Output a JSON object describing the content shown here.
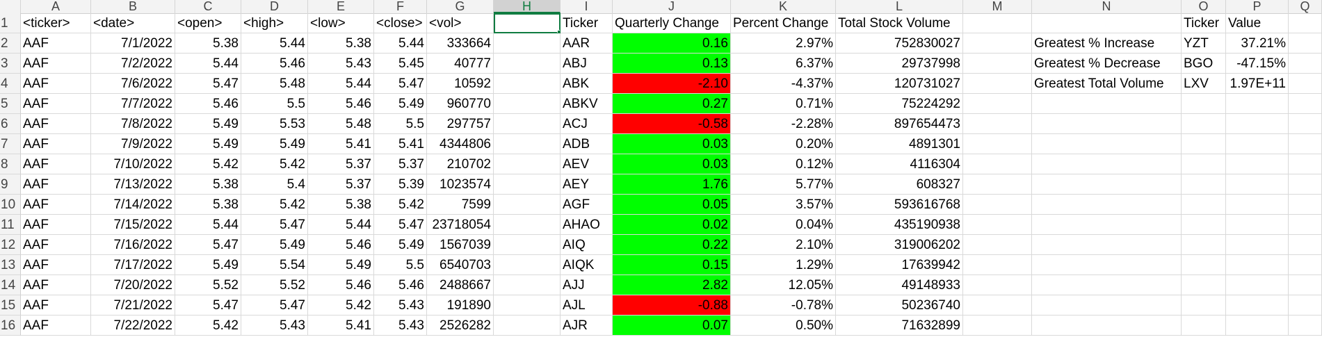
{
  "columns": [
    "A",
    "B",
    "C",
    "D",
    "E",
    "F",
    "G",
    "H",
    "I",
    "J",
    "K",
    "L",
    "M",
    "N",
    "O",
    "P",
    "Q"
  ],
  "active_column": "H",
  "headers": {
    "A": "<ticker>",
    "B": "<date>",
    "C": "<open>",
    "D": "<high>",
    "E": "<low>",
    "F": "<close>",
    "G": "<vol>",
    "I": "Ticker",
    "J": "Quarterly Change",
    "K": "Percent Change",
    "L": "Total Stock Volume",
    "O": "Ticker",
    "P": "Value"
  },
  "rows": [
    {
      "n": "2",
      "ticker": "AAF",
      "date": "7/1/2022",
      "open": "5.38",
      "high": "5.44",
      "low": "5.38",
      "close": "5.44",
      "vol": "333664",
      "t": "AAR",
      "qc": "0.16",
      "qc_color": "green",
      "pc": "2.97%",
      "tv": "752830027"
    },
    {
      "n": "3",
      "ticker": "AAF",
      "date": "7/2/2022",
      "open": "5.44",
      "high": "5.46",
      "low": "5.43",
      "close": "5.45",
      "vol": "40777",
      "t": "ABJ",
      "qc": "0.13",
      "qc_color": "green",
      "pc": "6.37%",
      "tv": "29737998"
    },
    {
      "n": "4",
      "ticker": "AAF",
      "date": "7/6/2022",
      "open": "5.47",
      "high": "5.48",
      "low": "5.44",
      "close": "5.47",
      "vol": "10592",
      "t": "ABK",
      "qc": "-2.10",
      "qc_color": "red",
      "pc": "-4.37%",
      "tv": "120731027"
    },
    {
      "n": "5",
      "ticker": "AAF",
      "date": "7/7/2022",
      "open": "5.46",
      "high": "5.5",
      "low": "5.46",
      "close": "5.49",
      "vol": "960770",
      "t": "ABKV",
      "qc": "0.27",
      "qc_color": "green",
      "pc": "0.71%",
      "tv": "75224292"
    },
    {
      "n": "6",
      "ticker": "AAF",
      "date": "7/8/2022",
      "open": "5.49",
      "high": "5.53",
      "low": "5.48",
      "close": "5.5",
      "vol": "297757",
      "t": "ACJ",
      "qc": "-0.58",
      "qc_color": "red",
      "pc": "-2.28%",
      "tv": "897654473"
    },
    {
      "n": "7",
      "ticker": "AAF",
      "date": "7/9/2022",
      "open": "5.49",
      "high": "5.49",
      "low": "5.41",
      "close": "5.41",
      "vol": "4344806",
      "t": "ADB",
      "qc": "0.03",
      "qc_color": "green",
      "pc": "0.20%",
      "tv": "4891301"
    },
    {
      "n": "8",
      "ticker": "AAF",
      "date": "7/10/2022",
      "open": "5.42",
      "high": "5.42",
      "low": "5.37",
      "close": "5.37",
      "vol": "210702",
      "t": "AEV",
      "qc": "0.03",
      "qc_color": "green",
      "pc": "0.12%",
      "tv": "4116304"
    },
    {
      "n": "9",
      "ticker": "AAF",
      "date": "7/13/2022",
      "open": "5.38",
      "high": "5.4",
      "low": "5.37",
      "close": "5.39",
      "vol": "1023574",
      "t": "AEY",
      "qc": "1.76",
      "qc_color": "green",
      "pc": "5.77%",
      "tv": "608327"
    },
    {
      "n": "10",
      "ticker": "AAF",
      "date": "7/14/2022",
      "open": "5.38",
      "high": "5.42",
      "low": "5.38",
      "close": "5.42",
      "vol": "7599",
      "t": "AGF",
      "qc": "0.05",
      "qc_color": "green",
      "pc": "3.57%",
      "tv": "593616768"
    },
    {
      "n": "11",
      "ticker": "AAF",
      "date": "7/15/2022",
      "open": "5.44",
      "high": "5.47",
      "low": "5.44",
      "close": "5.47",
      "vol": "23718054",
      "t": "AHAO",
      "qc": "0.02",
      "qc_color": "green",
      "pc": "0.04%",
      "tv": "435190938"
    },
    {
      "n": "12",
      "ticker": "AAF",
      "date": "7/16/2022",
      "open": "5.47",
      "high": "5.49",
      "low": "5.46",
      "close": "5.49",
      "vol": "1567039",
      "t": "AIQ",
      "qc": "0.22",
      "qc_color": "green",
      "pc": "2.10%",
      "tv": "319006202"
    },
    {
      "n": "13",
      "ticker": "AAF",
      "date": "7/17/2022",
      "open": "5.49",
      "high": "5.54",
      "low": "5.49",
      "close": "5.5",
      "vol": "6540703",
      "t": "AIQK",
      "qc": "0.15",
      "qc_color": "green",
      "pc": "1.29%",
      "tv": "17639942"
    },
    {
      "n": "14",
      "ticker": "AAF",
      "date": "7/20/2022",
      "open": "5.52",
      "high": "5.52",
      "low": "5.46",
      "close": "5.46",
      "vol": "2488667",
      "t": "AJJ",
      "qc": "2.82",
      "qc_color": "green",
      "pc": "12.05%",
      "tv": "49148933"
    },
    {
      "n": "15",
      "ticker": "AAF",
      "date": "7/21/2022",
      "open": "5.47",
      "high": "5.47",
      "low": "5.42",
      "close": "5.43",
      "vol": "191890",
      "t": "AJL",
      "qc": "-0.88",
      "qc_color": "red",
      "pc": "-0.78%",
      "tv": "50236740"
    },
    {
      "n": "16",
      "ticker": "AAF",
      "date": "7/22/2022",
      "open": "5.42",
      "high": "5.43",
      "low": "5.41",
      "close": "5.43",
      "vol": "2526282",
      "t": "AJR",
      "qc": "0.07",
      "qc_color": "green",
      "pc": "0.50%",
      "tv": "71632899"
    }
  ],
  "summary": [
    {
      "label": "Greatest % Increase",
      "ticker": "YZT",
      "value": "37.21%"
    },
    {
      "label": "Greatest % Decrease",
      "ticker": "BGO",
      "value": "-47.15%"
    },
    {
      "label": "Greatest Total Volume",
      "ticker": "LXV",
      "value": "1.97E+11"
    }
  ],
  "colors": {
    "positive": "#00ff00",
    "negative": "#ff0000",
    "selection": "#107c41"
  }
}
